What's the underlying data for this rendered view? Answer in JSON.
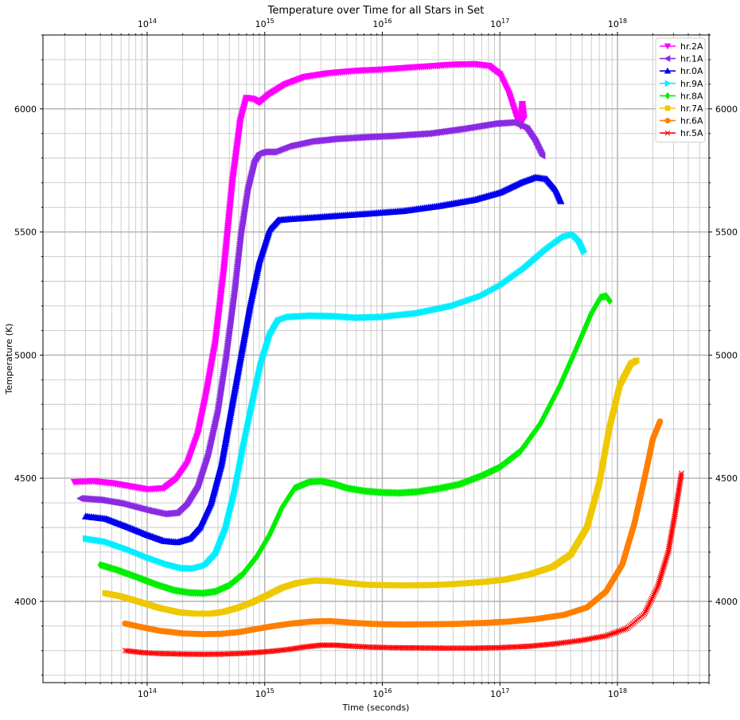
{
  "chart_data": {
    "type": "line",
    "title": "Temperature over Time for all Stars in Set",
    "xlabel": "Time (seconds)",
    "ylabel": "Temperature (K)",
    "xscale": "log",
    "xlim": [
      13000000000000.0,
      6e+18
    ],
    "ylim": [
      3670,
      6300
    ],
    "x_ticks": [
      100000000000000.0,
      1000000000000000.0,
      1e+16,
      1e+17,
      1e+18
    ],
    "x_tick_labels": [
      {
        "base": "10",
        "exp": "14"
      },
      {
        "base": "10",
        "exp": "15"
      },
      {
        "base": "10",
        "exp": "16"
      },
      {
        "base": "10",
        "exp": "17"
      },
      {
        "base": "10",
        "exp": "18"
      }
    ],
    "y_ticks": [
      4000,
      4500,
      5000,
      5500,
      6000
    ],
    "y_tick_labels": [
      "4000",
      "4500",
      "5000",
      "5500",
      "6000"
    ],
    "grid": true,
    "secondary_axes": "top and right mirror",
    "legend_position": "top-right",
    "series": [
      {
        "name": "hr.2A",
        "color": "#ff00ff",
        "marker": "triangle-down",
        "points": [
          [
            24000000000000.0,
            4485
          ],
          [
            35000000000000.0,
            4488
          ],
          [
            50000000000000.0,
            4480
          ],
          [
            70000000000000.0,
            4468
          ],
          [
            100000000000000.0,
            4455
          ],
          [
            140000000000000.0,
            4460
          ],
          [
            180000000000000.0,
            4500
          ],
          [
            220000000000000.0,
            4560
          ],
          [
            270000000000000.0,
            4680
          ],
          [
            320000000000000.0,
            4850
          ],
          [
            380000000000000.0,
            5050
          ],
          [
            450000000000000.0,
            5350
          ],
          [
            530000000000000.0,
            5700
          ],
          [
            620000000000000.0,
            5950
          ],
          [
            700000000000000.0,
            6045
          ],
          [
            800000000000000.0,
            6040
          ],
          [
            900000000000000.0,
            6025
          ],
          [
            1100000000000000.0,
            6060
          ],
          [
            1500000000000000.0,
            6100
          ],
          [
            2200000000000000.0,
            6130
          ],
          [
            3500000000000000.0,
            6145
          ],
          [
            6000000000000000.0,
            6155
          ],
          [
            1e+16,
            6160
          ],
          [
            2e+16,
            6170
          ],
          [
            4e+16,
            6180
          ],
          [
            6e+16,
            6182
          ],
          [
            8e+16,
            6175
          ],
          [
            1e+17,
            6140
          ],
          [
            1.2e+17,
            6060
          ],
          [
            1.4e+17,
            5960
          ],
          [
            1.5e+17,
            5930
          ],
          [
            1.55e+17,
            6020
          ],
          [
            1.6e+17,
            5960
          ]
        ]
      },
      {
        "name": "hr.1A",
        "color": "#8a2be2",
        "marker": "triangle-left",
        "points": [
          [
            27000000000000.0,
            4418
          ],
          [
            40000000000000.0,
            4412
          ],
          [
            60000000000000.0,
            4398
          ],
          [
            100000000000000.0,
            4370
          ],
          [
            140000000000000.0,
            4355
          ],
          [
            180000000000000.0,
            4360
          ],
          [
            220000000000000.0,
            4400
          ],
          [
            270000000000000.0,
            4470
          ],
          [
            330000000000000.0,
            4600
          ],
          [
            400000000000000.0,
            4780
          ],
          [
            470000000000000.0,
            5000
          ],
          [
            550000000000000.0,
            5250
          ],
          [
            630000000000000.0,
            5500
          ],
          [
            720000000000000.0,
            5680
          ],
          [
            820000000000000.0,
            5790
          ],
          [
            900000000000000.0,
            5820
          ],
          [
            1000000000000000.0,
            5825
          ],
          [
            1200000000000000.0,
            5825
          ],
          [
            1600000000000000.0,
            5848
          ],
          [
            2500000000000000.0,
            5868
          ],
          [
            4000000000000000.0,
            5878
          ],
          [
            7000000000000000.0,
            5885
          ],
          [
            1.2e+16,
            5890
          ],
          [
            2.5e+16,
            5900
          ],
          [
            5e+16,
            5920
          ],
          [
            9e+16,
            5940
          ],
          [
            1.3e+17,
            5945
          ],
          [
            1.7e+17,
            5920
          ],
          [
            2e+17,
            5870
          ],
          [
            2.3e+17,
            5810
          ]
        ]
      },
      {
        "name": "hr.0A",
        "color": "#0000ee",
        "marker": "triangle-up",
        "points": [
          [
            30000000000000.0,
            4345
          ],
          [
            45000000000000.0,
            4335
          ],
          [
            70000000000000.0,
            4300
          ],
          [
            100000000000000.0,
            4270
          ],
          [
            140000000000000.0,
            4245
          ],
          [
            180000000000000.0,
            4240
          ],
          [
            230000000000000.0,
            4255
          ],
          [
            280000000000000.0,
            4300
          ],
          [
            350000000000000.0,
            4400
          ],
          [
            430000000000000.0,
            4560
          ],
          [
            520000000000000.0,
            4780
          ],
          [
            630000000000000.0,
            5000
          ],
          [
            750000000000000.0,
            5200
          ],
          [
            900000000000000.0,
            5380
          ],
          [
            1100000000000000.0,
            5510
          ],
          [
            1300000000000000.0,
            5548
          ],
          [
            1600000000000000.0,
            5552
          ],
          [
            2500000000000000.0,
            5558
          ],
          [
            4000000000000000.0,
            5565
          ],
          [
            8000000000000000.0,
            5575
          ],
          [
            1.5e+16,
            5585
          ],
          [
            3e+16,
            5605
          ],
          [
            6e+16,
            5630
          ],
          [
            1e+17,
            5660
          ],
          [
            1.5e+17,
            5700
          ],
          [
            2e+17,
            5722
          ],
          [
            2.5e+17,
            5715
          ],
          [
            3e+17,
            5670
          ],
          [
            3.3e+17,
            5625
          ]
        ]
      },
      {
        "name": "hr.9A",
        "color": "#00eeff",
        "marker": "triangle-right",
        "points": [
          [
            30000000000000.0,
            4255
          ],
          [
            45000000000000.0,
            4242
          ],
          [
            70000000000000.0,
            4210
          ],
          [
            100000000000000.0,
            4180
          ],
          [
            150000000000000.0,
            4150
          ],
          [
            200000000000000.0,
            4135
          ],
          [
            250000000000000.0,
            4133
          ],
          [
            310000000000000.0,
            4145
          ],
          [
            380000000000000.0,
            4190
          ],
          [
            460000000000000.0,
            4290
          ],
          [
            550000000000000.0,
            4440
          ],
          [
            650000000000000.0,
            4620
          ],
          [
            780000000000000.0,
            4800
          ],
          [
            920000000000000.0,
            4960
          ],
          [
            1100000000000000.0,
            5080
          ],
          [
            1300000000000000.0,
            5140
          ],
          [
            1600000000000000.0,
            5155
          ],
          [
            2500000000000000.0,
            5160
          ],
          [
            4000000000000000.0,
            5158
          ],
          [
            6000000000000000.0,
            5152
          ],
          [
            1e+16,
            5155
          ],
          [
            2e+16,
            5170
          ],
          [
            4e+16,
            5200
          ],
          [
            7e+16,
            5240
          ],
          [
            1e+17,
            5280
          ],
          [
            1.6e+17,
            5350
          ],
          [
            2.5e+17,
            5430
          ],
          [
            3.5e+17,
            5480
          ],
          [
            4.2e+17,
            5490
          ],
          [
            4.7e+17,
            5465
          ],
          [
            5.2e+17,
            5420
          ]
        ]
      },
      {
        "name": "hr.8A",
        "color": "#00ee00",
        "marker": "diamond",
        "points": [
          [
            40000000000000.0,
            4148
          ],
          [
            55000000000000.0,
            4128
          ],
          [
            80000000000000.0,
            4100
          ],
          [
            120000000000000.0,
            4068
          ],
          [
            170000000000000.0,
            4045
          ],
          [
            230000000000000.0,
            4035
          ],
          [
            300000000000000.0,
            4033
          ],
          [
            380000000000000.0,
            4040
          ],
          [
            500000000000000.0,
            4065
          ],
          [
            650000000000000.0,
            4110
          ],
          [
            850000000000000.0,
            4180
          ],
          [
            1100000000000000.0,
            4270
          ],
          [
            1400000000000000.0,
            4380
          ],
          [
            1800000000000000.0,
            4460
          ],
          [
            2400000000000000.0,
            4485
          ],
          [
            3000000000000000.0,
            4488
          ],
          [
            3800000000000000.0,
            4478
          ],
          [
            5000000000000000.0,
            4460
          ],
          [
            7000000000000000.0,
            4448
          ],
          [
            1e+16,
            4442
          ],
          [
            1.4e+16,
            4440
          ],
          [
            2e+16,
            4445
          ],
          [
            3e+16,
            4458
          ],
          [
            4.5e+16,
            4475
          ],
          [
            7e+16,
            4510
          ],
          [
            1e+17,
            4545
          ],
          [
            1.5e+17,
            4610
          ],
          [
            2.2e+17,
            4720
          ],
          [
            3.2e+17,
            4870
          ],
          [
            4.5e+17,
            5030
          ],
          [
            6e+17,
            5170
          ],
          [
            7.2e+17,
            5235
          ],
          [
            8e+17,
            5240
          ],
          [
            8.6e+17,
            5220
          ]
        ]
      },
      {
        "name": "hr.7A",
        "color": "#eec800",
        "marker": "square",
        "points": [
          [
            44000000000000.0,
            4033
          ],
          [
            60000000000000.0,
            4020
          ],
          [
            90000000000000.0,
            3995
          ],
          [
            130000000000000.0,
            3972
          ],
          [
            190000000000000.0,
            3955
          ],
          [
            260000000000000.0,
            3950
          ],
          [
            350000000000000.0,
            3950
          ],
          [
            450000000000000.0,
            3958
          ],
          [
            600000000000000.0,
            3975
          ],
          [
            800000000000000.0,
            3998
          ],
          [
            1050000000000000.0,
            4025
          ],
          [
            1400000000000000.0,
            4055
          ],
          [
            1900000000000000.0,
            4075
          ],
          [
            2600000000000000.0,
            4084
          ],
          [
            3500000000000000.0,
            4083
          ],
          [
            5000000000000000.0,
            4075
          ],
          [
            7000000000000000.0,
            4068
          ],
          [
            1e+16,
            4066
          ],
          [
            1.5e+16,
            4065
          ],
          [
            2.5e+16,
            4066
          ],
          [
            4e+16,
            4070
          ],
          [
            7e+16,
            4078
          ],
          [
            1.1e+17,
            4088
          ],
          [
            1.8e+17,
            4110
          ],
          [
            2.8e+17,
            4140
          ],
          [
            4e+17,
            4190
          ],
          [
            5.5e+17,
            4300
          ],
          [
            7e+17,
            4480
          ],
          [
            8.5e+17,
            4700
          ],
          [
            1.05e+18,
            4880
          ],
          [
            1.3e+18,
            4965
          ],
          [
            1.45e+18,
            4978
          ]
        ]
      },
      {
        "name": "hr.6A",
        "color": "#ff7f00",
        "marker": "circle",
        "points": [
          [
            65000000000000.0,
            3910
          ],
          [
            90000000000000.0,
            3895
          ],
          [
            130000000000000.0,
            3880
          ],
          [
            200000000000000.0,
            3870
          ],
          [
            300000000000000.0,
            3867
          ],
          [
            420000000000000.0,
            3868
          ],
          [
            600000000000000.0,
            3875
          ],
          [
            850000000000000.0,
            3888
          ],
          [
            1200000000000000.0,
            3900
          ],
          [
            1700000000000000.0,
            3910
          ],
          [
            2500000000000000.0,
            3918
          ],
          [
            3500000000000000.0,
            3920
          ],
          [
            5000000000000000.0,
            3915
          ],
          [
            7000000000000000.0,
            3910
          ],
          [
            1e+16,
            3907
          ],
          [
            1.5e+16,
            3906
          ],
          [
            2.5e+16,
            3907
          ],
          [
            4e+16,
            3908
          ],
          [
            7e+16,
            3912
          ],
          [
            1.2e+17,
            3918
          ],
          [
            2e+17,
            3928
          ],
          [
            3.5e+17,
            3945
          ],
          [
            5.5e+17,
            3975
          ],
          [
            8e+17,
            4040
          ],
          [
            1.1e+18,
            4150
          ],
          [
            1.4e+18,
            4320
          ],
          [
            1.7e+18,
            4500
          ],
          [
            2e+18,
            4660
          ],
          [
            2.3e+18,
            4730
          ]
        ]
      },
      {
        "name": "hr.5A",
        "color": "#ff0000",
        "marker": "x",
        "points": [
          [
            65000000000000.0,
            3800
          ],
          [
            90000000000000.0,
            3792
          ],
          [
            130000000000000.0,
            3788
          ],
          [
            200000000000000.0,
            3786
          ],
          [
            300000000000000.0,
            3785
          ],
          [
            450000000000000.0,
            3786
          ],
          [
            650000000000000.0,
            3789
          ],
          [
            900000000000000.0,
            3793
          ],
          [
            1200000000000000.0,
            3798
          ],
          [
            1600000000000000.0,
            3805
          ],
          [
            2200000000000000.0,
            3815
          ],
          [
            3000000000000000.0,
            3822
          ],
          [
            4000000000000000.0,
            3822
          ],
          [
            5500000000000000.0,
            3818
          ],
          [
            8000000000000000.0,
            3814
          ],
          [
            1.2e+16,
            3812
          ],
          [
            2e+16,
            3811
          ],
          [
            3.5e+16,
            3810
          ],
          [
            6e+16,
            3810
          ],
          [
            1e+17,
            3812
          ],
          [
            1.8e+17,
            3818
          ],
          [
            3e+17,
            3828
          ],
          [
            5e+17,
            3842
          ],
          [
            8e+17,
            3860
          ],
          [
            1.2e+18,
            3890
          ],
          [
            1.7e+18,
            3950
          ],
          [
            2.2e+18,
            4060
          ],
          [
            2.7e+18,
            4200
          ],
          [
            3.1e+18,
            4360
          ],
          [
            3.5e+18,
            4520
          ]
        ]
      }
    ]
  }
}
